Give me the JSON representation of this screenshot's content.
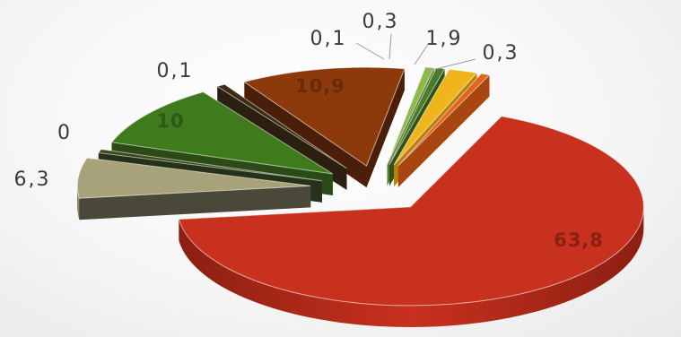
{
  "chart_data": {
    "type": "pie",
    "style": "3d-exploded",
    "values": [
      63.8,
      6.3,
      0,
      10,
      0.1,
      10.9,
      0.1,
      0.3,
      1.9,
      0.3
    ],
    "labels": [
      "63,8",
      "6,3",
      "0",
      "10",
      "0,1",
      "10,9",
      "0,1",
      "0,3",
      "1,9",
      "0,3"
    ],
    "colors": [
      "#c8311d",
      "#a8a27a",
      "#3a4a1c",
      "#3f7a1c",
      "#3b2b16",
      "#8c3a0c",
      "#8db84a",
      "#4a7b2a",
      "#f0b51c",
      "#e0661a"
    ],
    "side_colors": [
      "#8c1f12",
      "#4a4838",
      "#26311a",
      "#2a4a16",
      "#2b1f10",
      "#4a1e08",
      "#5a7a30",
      "#2f5218",
      "#b88010",
      "#a84510"
    ],
    "label_positions": [
      "inside",
      "outside",
      "outside",
      "inside",
      "outside",
      "inside",
      "outside",
      "outside",
      "outside",
      "outside"
    ]
  }
}
